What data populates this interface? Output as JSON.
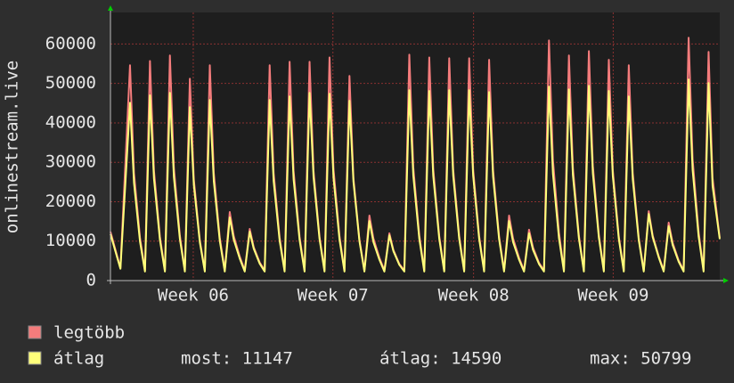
{
  "chart_data": {
    "type": "line",
    "ylabel": "onlinestream.live",
    "x": [
      0,
      0.5,
      0.98,
      1.18,
      1.48,
      1.73,
      1.98,
      2.18,
      2.48,
      2.73,
      2.98,
      3.18,
      3.48,
      3.73,
      3.98,
      4.18,
      4.48,
      4.73,
      4.98,
      5.18,
      5.48,
      5.73,
      5.98,
      6.18,
      6.48,
      6.73,
      6.98,
      7.18,
      7.48,
      7.73,
      7.98,
      8.18,
      8.48,
      8.73,
      8.98,
      9.18,
      9.48,
      9.73,
      9.98,
      10.18,
      10.48,
      10.73,
      10.98,
      11.18,
      11.48,
      11.73,
      11.98,
      12.18,
      12.48,
      12.73,
      12.98,
      13.18,
      13.48,
      13.73,
      13.98,
      14.18,
      14.48,
      14.73,
      14.98,
      15.18,
      15.48,
      15.73,
      15.98,
      16.18,
      16.48,
      16.73,
      16.98,
      17.18,
      17.48,
      17.73,
      17.98,
      18.18,
      18.48,
      18.73,
      18.98,
      19.18,
      19.48,
      19.73,
      19.98,
      20.18,
      20.48,
      20.73,
      20.98,
      21.18,
      21.48,
      21.73,
      21.98,
      22.18,
      22.48,
      22.73,
      22.98,
      23.18,
      23.48,
      23.73,
      23.98,
      24.18,
      24.48,
      24.73,
      24.98,
      25.18,
      25.48,
      25.73,
      25.98,
      26.18,
      26.48,
      26.73,
      26.98,
      27.18,
      27.48,
      27.73,
      27.98,
      28.18,
      28.48,
      28.73,
      28.98,
      29.18,
      29.48,
      29.73,
      29.98,
      30.18,
      30.54
    ],
    "series": [
      {
        "name": "legtöbb",
        "color": "#f47c7c",
        "values": [
          12400,
          3200,
          54600,
          27300,
          10900,
          2600,
          55700,
          27900,
          11100,
          2600,
          57100,
          28600,
          11400,
          2600,
          51200,
          25600,
          10200,
          2600,
          54600,
          27300,
          10900,
          2600,
          17400,
          11300,
          6100,
          2600,
          13100,
          8500,
          4600,
          2600,
          54600,
          27300,
          10900,
          2600,
          55500,
          27800,
          11100,
          2600,
          55500,
          27800,
          11100,
          2600,
          56600,
          28300,
          11300,
          2600,
          51900,
          26000,
          10400,
          2600,
          16500,
          10700,
          5800,
          2600,
          12000,
          7800,
          4200,
          2600,
          57300,
          28700,
          11500,
          2600,
          56600,
          28300,
          11300,
          2600,
          56400,
          28200,
          11300,
          2600,
          56400,
          28200,
          11300,
          2600,
          56000,
          28000,
          11200,
          2600,
          16500,
          10700,
          5800,
          2600,
          12900,
          8400,
          4500,
          2600,
          60900,
          30500,
          12200,
          2600,
          57100,
          28600,
          11400,
          2600,
          58200,
          29100,
          11600,
          2600,
          56000,
          28000,
          11200,
          2600,
          54600,
          27300,
          10900,
          2600,
          17600,
          11400,
          6200,
          2600,
          14700,
          9600,
          5100,
          2600,
          61600,
          30800,
          12300,
          2600,
          58000,
          26000,
          10800
        ]
      },
      {
        "name": "átlag",
        "color": "#ffff7a",
        "values": [
          11800,
          3000,
          45100,
          24800,
          9900,
          2300,
          47000,
          25900,
          10300,
          2300,
          47600,
          26200,
          10500,
          2300,
          44000,
          24200,
          9700,
          2300,
          45800,
          25200,
          10100,
          2300,
          16000,
          10400,
          5600,
          2300,
          12400,
          8100,
          4300,
          2300,
          45800,
          25200,
          10100,
          2300,
          46700,
          25700,
          10300,
          2300,
          47600,
          26200,
          10500,
          2300,
          47400,
          26100,
          10400,
          2300,
          45600,
          25100,
          10000,
          2300,
          15100,
          9800,
          5300,
          2300,
          11500,
          7500,
          4000,
          2300,
          48300,
          26600,
          10600,
          2300,
          48100,
          26500,
          10600,
          2300,
          48300,
          26600,
          10600,
          2300,
          48300,
          26600,
          10600,
          2300,
          47800,
          26300,
          10500,
          2300,
          15100,
          9800,
          5300,
          2300,
          12000,
          7800,
          4200,
          2300,
          49200,
          27100,
          10800,
          2300,
          48500,
          26700,
          10700,
          2300,
          49400,
          27200,
          10900,
          2300,
          48100,
          26500,
          10600,
          2300,
          46700,
          25700,
          10300,
          2300,
          16900,
          11000,
          5900,
          2300,
          13800,
          9000,
          4800,
          2300,
          51000,
          28100,
          11200,
          2300,
          50100,
          24000,
          10500
        ]
      }
    ],
    "xlim": [
      0,
      30.54
    ],
    "xticks": [
      {
        "value": 4.15,
        "label": "Week 06"
      },
      {
        "value": 11.15,
        "label": "Week 07"
      },
      {
        "value": 18.2,
        "label": "Week 08"
      },
      {
        "value": 25.2,
        "label": "Week 09"
      }
    ],
    "ylim": [
      0,
      68000
    ],
    "yticks": [
      0,
      10000,
      20000,
      30000,
      40000,
      50000,
      60000
    ],
    "grid": true,
    "stats": [
      "most: 11147",
      "átlag: 14590",
      "max: 50799"
    ]
  }
}
